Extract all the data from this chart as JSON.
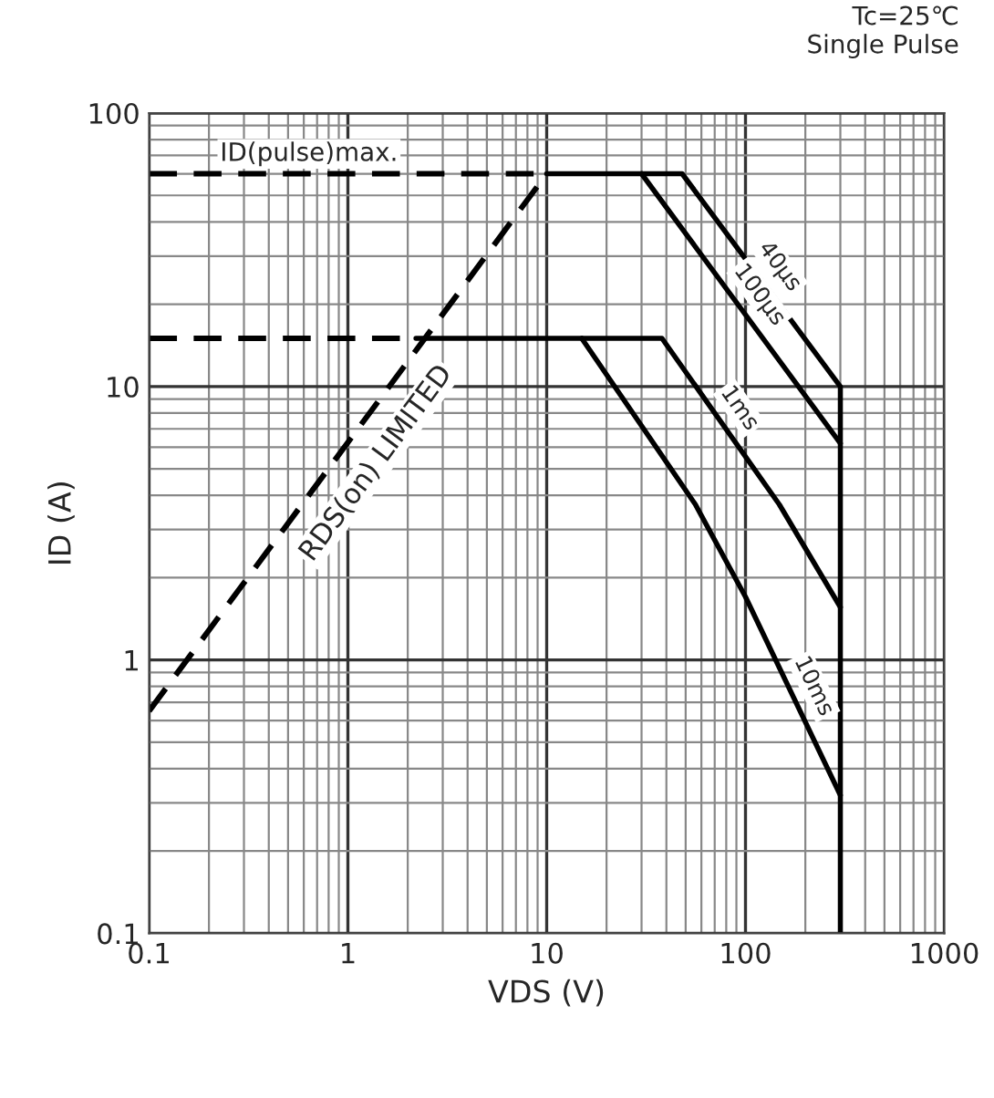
{
  "chart_data": {
    "type": "line",
    "title": "Tc=25℃\nSingle Pulse",
    "xlabel": "VDS (V)",
    "ylabel": "ID (A)",
    "log": "xy",
    "grid": true,
    "xlim": [
      0.1,
      1000
    ],
    "ylim": [
      0.1,
      100
    ],
    "xticks": [
      0.1,
      1,
      10,
      100,
      1000
    ],
    "yticks": [
      0.1,
      1,
      10,
      100
    ],
    "series": [
      {
        "name": "ID(pulse)max.",
        "color": "#000000",
        "line_style": "dashed",
        "x": [
          0.1,
          10
        ],
        "values": [
          60,
          60
        ]
      },
      {
        "color": "#000000",
        "line_style": "dashed",
        "x": [
          0.1,
          2.2
        ],
        "values": [
          15,
          15
        ]
      },
      {
        "name": "RDS(on) LIMITED",
        "color": "#000000",
        "line_style": "dashed",
        "x": [
          0.1,
          10
        ],
        "values": [
          0.65,
          60
        ]
      },
      {
        "name": "40µs",
        "color": "#000000",
        "line_style": "solid",
        "x": [
          10,
          48,
          300,
          300
        ],
        "values": [
          60,
          60,
          10,
          0.1
        ]
      },
      {
        "name": "100µs",
        "color": "#000000",
        "line_style": "solid",
        "x": [
          30,
          300
        ],
        "values": [
          60,
          6.2
        ]
      },
      {
        "name": "1ms",
        "color": "#000000",
        "line_style": "solid",
        "x": [
          2.2,
          38,
          148,
          300
        ],
        "values": [
          15,
          15,
          3.7,
          1.56
        ]
      },
      {
        "name": "10ms",
        "color": "#000000",
        "line_style": "solid",
        "x": [
          15,
          56,
          100,
          300
        ],
        "values": [
          15,
          3.7,
          1.7,
          0.32
        ]
      }
    ]
  }
}
